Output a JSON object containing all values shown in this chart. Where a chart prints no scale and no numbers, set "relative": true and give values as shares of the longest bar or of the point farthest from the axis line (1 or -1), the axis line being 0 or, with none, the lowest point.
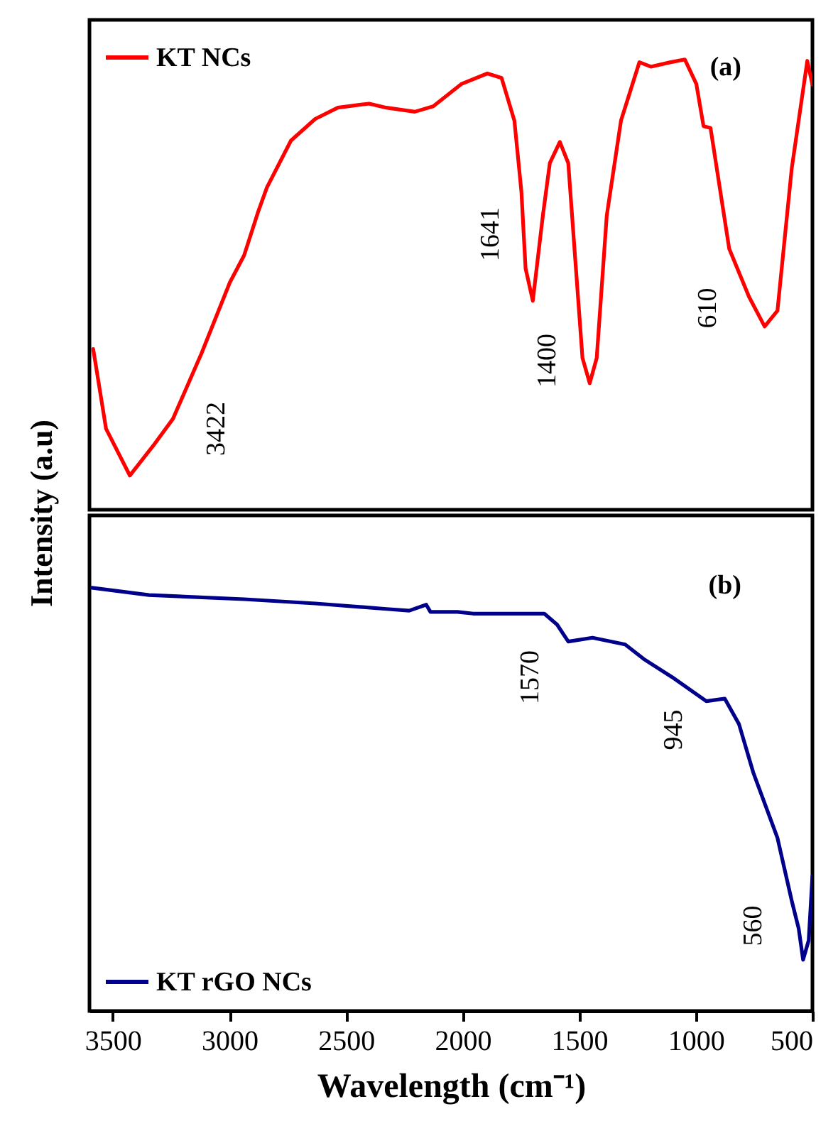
{
  "chart_data": [
    {
      "type": "line",
      "ylabel": "Intensity (a.u)",
      "relative": true,
      "xlim": [
        3600,
        500
      ],
      "tick_labels": false,
      "legend": "top left",
      "line_style": "solid",
      "series": [
        {
          "name": "KT NCs",
          "color": "#ff0000",
          "x": [
            3584,
            3529,
            3427,
            3327,
            3242,
            3120,
            2998,
            2937,
            2876,
            2839,
            2736,
            2632,
            2535,
            2401,
            2327,
            2205,
            2126,
            2004,
            1894,
            1833,
            1778,
            1748,
            1730,
            1699,
            1656,
            1626,
            1583,
            1547,
            1516,
            1486,
            1455,
            1425,
            1382,
            1321,
            1242,
            1193,
            1108,
            1047,
            998,
            967,
            937,
            857,
            772,
            705,
            650,
            589,
            522,
            500
          ],
          "values": [
            0.357,
            0.18,
            0.076,
            0.142,
            0.202,
            0.347,
            0.505,
            0.565,
            0.663,
            0.716,
            0.82,
            0.868,
            0.893,
            0.902,
            0.893,
            0.884,
            0.896,
            0.946,
            0.969,
            0.959,
            0.864,
            0.707,
            0.536,
            0.464,
            0.653,
            0.77,
            0.817,
            0.77,
            0.549,
            0.337,
            0.281,
            0.337,
            0.653,
            0.864,
            0.994,
            0.984,
            0.994,
            1,
            0.946,
            0.852,
            0.848,
            0.58,
            0.473,
            0.407,
            0.442,
            0.757,
            0.997,
            0.944
          ]
        }
      ],
      "annotations": [
        "(a)",
        "3422",
        "1641",
        "1400",
        "610"
      ]
    },
    {
      "type": "line",
      "xlabel": "Wavelength (cm⁻¹)",
      "relative": true,
      "xlim": [
        3600,
        500
      ],
      "xticks": [
        3500,
        3000,
        2500,
        2000,
        1500,
        1000,
        500
      ],
      "tick_labels": "x",
      "legend": "bottom left",
      "line_style": "solid",
      "series": [
        {
          "name": "KT rGO NCs",
          "color": "#00008b",
          "x": [
            3590,
            3345,
            2937,
            2632,
            2327,
            2229,
            2156,
            2138,
            2022,
            1955,
            1650,
            1595,
            1547,
            1443,
            1303,
            1224,
            1102,
            955,
            876,
            815,
            754,
            650,
            589,
            559,
            540,
            516,
            500
          ],
          "values": [
            1,
            0.983,
            0.973,
            0.963,
            0.95,
            0.946,
            0.96,
            0.943,
            0.943,
            0.939,
            0.939,
            0.913,
            0.873,
            0.882,
            0.866,
            0.832,
            0.789,
            0.732,
            0.738,
            0.678,
            0.564,
            0.409,
            0.261,
            0.195,
            0.121,
            0.167,
            0.319
          ]
        }
      ],
      "annotations": [
        "(b)",
        "1570",
        "945",
        "560"
      ]
    }
  ]
}
